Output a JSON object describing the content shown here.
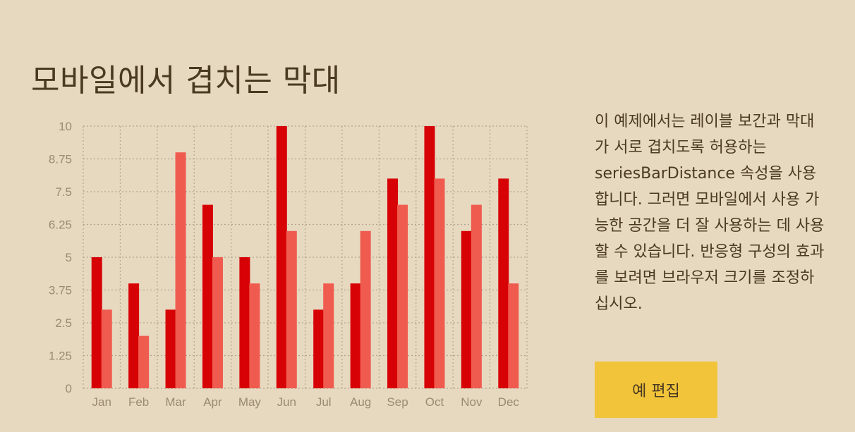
{
  "page": {
    "title": "모바일에서 겹치는 막대",
    "description": "이 예제에서는 레이블 보간과 막대가 서로 겹치도록 허용하는 seriesBarDistance 속성을 사용합니다. 그러면 모바일에서 사용 가능한 공간을 더 잘 사용하는 데 사용할 수 있습니다. 반응형 구성의 효과를 보려면 브라우저 크기를 조정하십시오.",
    "edit_button_label": "예 편집"
  },
  "colors": {
    "background": "#e7d8c0",
    "series_a": "#d70206",
    "series_b": "#f05b4f",
    "grid": "#b3a58e",
    "button": "#f2c43a"
  },
  "chart_data": {
    "type": "bar",
    "title": "",
    "xlabel": "",
    "ylabel": "",
    "categories": [
      "Jan",
      "Feb",
      "Mar",
      "Apr",
      "May",
      "Jun",
      "Jul",
      "Aug",
      "Sep",
      "Oct",
      "Nov",
      "Dec"
    ],
    "series": [
      {
        "values": [
          5,
          4,
          3,
          7,
          5,
          10,
          3,
          4,
          8,
          10,
          6,
          8
        ]
      },
      {
        "values": [
          3,
          2,
          9,
          5,
          4,
          6,
          4,
          6,
          7,
          8,
          7,
          4
        ]
      }
    ],
    "ylim": [
      0,
      10
    ],
    "yticks": [
      "0",
      "1.25",
      "2.5",
      "3.75",
      "5",
      "6.25",
      "7.5",
      "8.75",
      "10"
    ],
    "grid": true,
    "overlap": true
  }
}
